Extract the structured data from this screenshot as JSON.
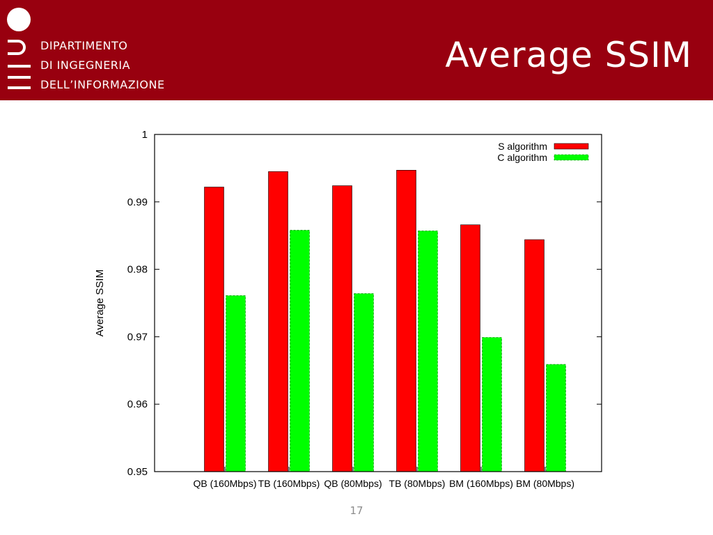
{
  "header": {
    "dept_lines": [
      "DIPARTIMENTO",
      "DI INGEGNERIA",
      "DELL’INFORMAZIONE"
    ],
    "title": "Average SSIM",
    "background": "#98000f"
  },
  "page_number": "17",
  "chart_data": {
    "type": "bar",
    "categories": [
      "QB (160Mbps)",
      "TB (160Mbps)",
      "QB (80Mbps)",
      "TB (80Mbps)",
      "BM (160Mbps)",
      "BM (80Mbps)"
    ],
    "series": [
      {
        "name": "S algorithm",
        "color": "#ff0000",
        "values": [
          0.9922,
          0.9945,
          0.9924,
          0.9947,
          0.9866,
          0.9844
        ]
      },
      {
        "name": "C algorithm",
        "color": "#00ff00",
        "values": [
          0.9761,
          0.9858,
          0.9764,
          0.9857,
          0.9699,
          0.9659
        ]
      }
    ],
    "ylabel": "Average SSIM",
    "xlabel": "",
    "ylim": [
      0.95,
      1
    ],
    "yticks": [
      "0.95",
      "0.96",
      "0.97",
      "0.98",
      "0.99",
      "1"
    ],
    "grid": false,
    "legend_position": "top-right"
  }
}
